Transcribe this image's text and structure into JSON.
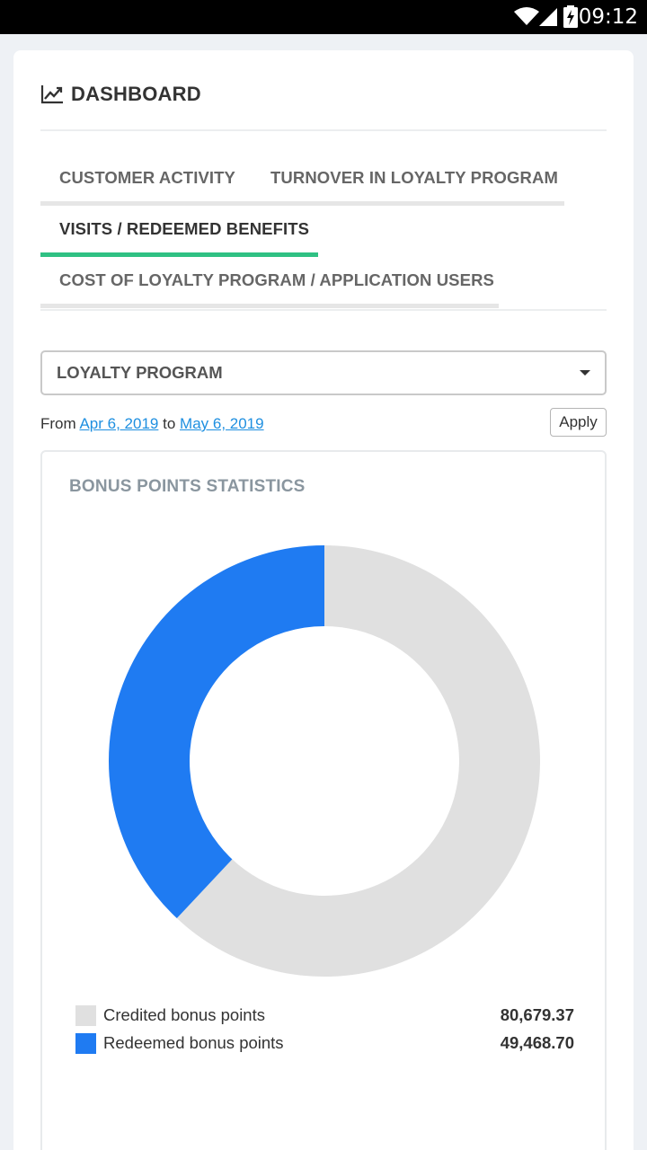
{
  "status_bar": {
    "time": "09:12",
    "icons": [
      "wifi-icon",
      "signal-icon",
      "battery-charging-icon"
    ]
  },
  "header": {
    "icon": "line-chart-icon",
    "title": "DASHBOARD"
  },
  "tabs": [
    {
      "label": "CUSTOMER ACTIVITY",
      "active": false
    },
    {
      "label": "TURNOVER IN LOYALTY PROGRAM",
      "active": false
    },
    {
      "label": "VISITS / REDEEMED BENEFITS",
      "active": true
    },
    {
      "label": "COST OF LOYALTY PROGRAM / APPLICATION USERS",
      "active": false
    }
  ],
  "filter": {
    "selected": "LOYALTY PROGRAM"
  },
  "date_range": {
    "from_label": "From",
    "from": "Apr 6, 2019",
    "to_label": "to",
    "to": "May 6, 2019",
    "apply_label": "Apply"
  },
  "panel": {
    "title": "BONUS POINTS STATISTICS"
  },
  "colors": {
    "accent": "#2fc183",
    "credited": "#e0e0e0",
    "redeemed": "#1f7bf2",
    "link": "#1e8fe0"
  },
  "chart_data": {
    "type": "pie",
    "title": "BONUS POINTS STATISTICS",
    "donut": true,
    "legend_position": "bottom",
    "slices": [
      {
        "label": "Credited bonus points",
        "value": 80679.37,
        "display": "80,679.37",
        "color": "#e0e0e0"
      },
      {
        "label": "Redeemed bonus points",
        "value": 49468.7,
        "display": "49,468.70",
        "color": "#1f7bf2"
      }
    ]
  }
}
